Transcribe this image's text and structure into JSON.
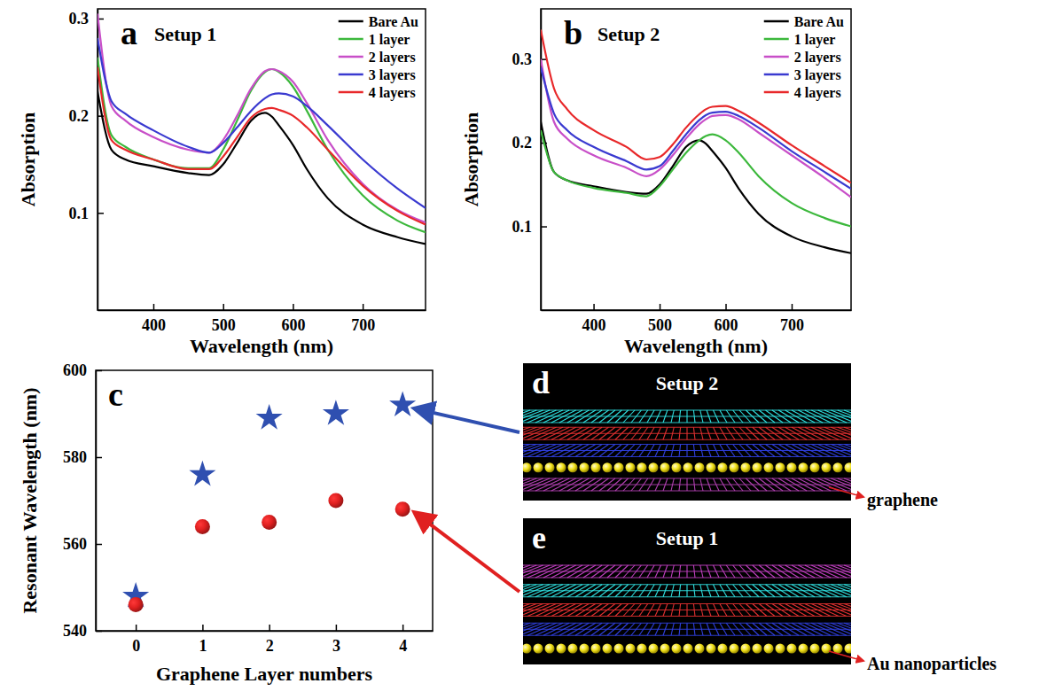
{
  "chart_data": [
    {
      "type": "line",
      "panel": "a",
      "title": "Setup 1",
      "xlabel": "Wavelength (nm)",
      "ylabel": "Absorption",
      "x": [
        320,
        340,
        360,
        400,
        450,
        480,
        500,
        520,
        540,
        560,
        570,
        580,
        600,
        620,
        650,
        700,
        750,
        790
      ],
      "series": [
        {
          "name": "Bare Au",
          "color": "#000000",
          "values": [
            0.225,
            0.165,
            0.155,
            0.148,
            0.141,
            0.139,
            0.15,
            0.172,
            0.195,
            0.203,
            0.199,
            0.19,
            0.17,
            0.145,
            0.115,
            0.088,
            0.075,
            0.068
          ]
        },
        {
          "name": "1 layer",
          "color": "#3cb83c",
          "values": [
            0.26,
            0.18,
            0.168,
            0.155,
            0.146,
            0.146,
            0.165,
            0.195,
            0.226,
            0.245,
            0.248,
            0.245,
            0.23,
            0.205,
            0.165,
            0.118,
            0.092,
            0.08
          ]
        },
        {
          "name": "2 layers",
          "color": "#c84fc8",
          "values": [
            0.305,
            0.21,
            0.195,
            0.178,
            0.165,
            0.162,
            0.175,
            0.2,
            0.228,
            0.246,
            0.248,
            0.246,
            0.235,
            0.213,
            0.175,
            0.13,
            0.103,
            0.09
          ]
        },
        {
          "name": "3 layers",
          "color": "#3a3ad0",
          "values": [
            0.28,
            0.215,
            0.202,
            0.185,
            0.168,
            0.162,
            0.172,
            0.188,
            0.205,
            0.218,
            0.222,
            0.223,
            0.22,
            0.21,
            0.19,
            0.155,
            0.125,
            0.105
          ]
        },
        {
          "name": "4 layers",
          "color": "#e8282a",
          "values": [
            0.25,
            0.175,
            0.165,
            0.155,
            0.145,
            0.145,
            0.158,
            0.178,
            0.198,
            0.207,
            0.208,
            0.206,
            0.2,
            0.188,
            0.165,
            0.128,
            0.102,
            0.088
          ]
        }
      ],
      "xlim": [
        320,
        790
      ],
      "ylim": [
        0,
        0.31
      ],
      "xticks": [
        400,
        500,
        600,
        700
      ],
      "yticks": [
        0.1,
        0.2,
        0.3
      ],
      "legend": "upper right"
    },
    {
      "type": "line",
      "panel": "b",
      "title": "Setup 2",
      "xlabel": "Wavelength (nm)",
      "ylabel": "Absorption",
      "x": [
        320,
        340,
        360,
        400,
        450,
        480,
        500,
        520,
        540,
        560,
        570,
        580,
        600,
        620,
        650,
        700,
        750,
        790
      ],
      "series": [
        {
          "name": "Bare Au",
          "color": "#000000",
          "values": [
            0.225,
            0.165,
            0.155,
            0.148,
            0.141,
            0.139,
            0.15,
            0.172,
            0.195,
            0.203,
            0.199,
            0.19,
            0.17,
            0.145,
            0.115,
            0.088,
            0.075,
            0.068
          ]
        },
        {
          "name": "1 layer",
          "color": "#3cb83c",
          "values": [
            0.215,
            0.165,
            0.155,
            0.146,
            0.14,
            0.136,
            0.148,
            0.168,
            0.188,
            0.203,
            0.208,
            0.21,
            0.203,
            0.188,
            0.16,
            0.128,
            0.11,
            0.1
          ]
        },
        {
          "name": "2 layers",
          "color": "#c84fc8",
          "values": [
            0.3,
            0.225,
            0.205,
            0.185,
            0.17,
            0.16,
            0.168,
            0.185,
            0.205,
            0.222,
            0.228,
            0.232,
            0.233,
            0.228,
            0.212,
            0.185,
            0.158,
            0.135
          ]
        },
        {
          "name": "3 layers",
          "color": "#3a3ad0",
          "values": [
            0.29,
            0.235,
            0.215,
            0.195,
            0.178,
            0.168,
            0.172,
            0.19,
            0.21,
            0.227,
            0.233,
            0.236,
            0.237,
            0.232,
            0.218,
            0.19,
            0.165,
            0.145
          ]
        },
        {
          "name": "4 layers",
          "color": "#e8282a",
          "values": [
            0.335,
            0.265,
            0.24,
            0.215,
            0.195,
            0.18,
            0.183,
            0.198,
            0.218,
            0.234,
            0.24,
            0.243,
            0.244,
            0.238,
            0.224,
            0.197,
            0.172,
            0.152
          ]
        }
      ],
      "xlim": [
        320,
        790
      ],
      "ylim": [
        0,
        0.36
      ],
      "xticks": [
        400,
        500,
        600,
        700
      ],
      "yticks": [
        0.1,
        0.2,
        0.3
      ],
      "legend": "upper right"
    },
    {
      "type": "scatter",
      "panel": "c",
      "xlabel": "Graphene Layer numbers",
      "ylabel": "Resonant Wavelength (nm)",
      "x": [
        0,
        1,
        2,
        3,
        4
      ],
      "series": [
        {
          "color": "#2f4fb0",
          "marker": "star",
          "values": [
            548,
            576,
            589,
            590,
            592
          ]
        },
        {
          "color": "#e02020",
          "marker": "circle",
          "values": [
            546,
            564,
            565,
            570,
            568
          ]
        }
      ],
      "xlim": [
        -0.6,
        4.45
      ],
      "ylim": [
        540,
        600
      ],
      "xticks": [
        0,
        1,
        2,
        3,
        4
      ],
      "yticks": [
        540,
        560,
        580,
        600
      ]
    }
  ],
  "illustrations": [
    {
      "panel": "d",
      "title": "Setup 2",
      "label": "graphene"
    },
    {
      "panel": "e",
      "title": "Setup 1",
      "label": "Au nanoparticles"
    }
  ]
}
